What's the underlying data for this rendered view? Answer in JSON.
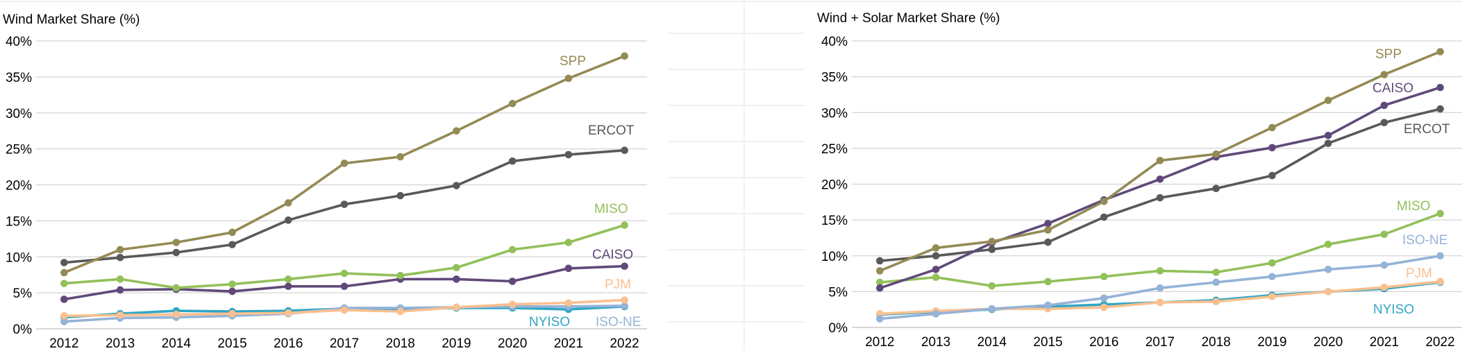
{
  "colors": {
    "SPP": "#948a54",
    "ERCOT": "#595959",
    "MISO": "#92c05a",
    "CAISO": "#60497a",
    "PJM": "#fac090",
    "NYISO": "#31a6c4",
    "ISO-NE": "#95b3d7"
  },
  "chart_data": [
    {
      "type": "line",
      "title": "Wind Market Share (%)",
      "x": [
        "2012",
        "2013",
        "2014",
        "2015",
        "2016",
        "2017",
        "2018",
        "2019",
        "2020",
        "2021",
        "2022"
      ],
      "ylim": [
        0,
        40
      ],
      "yticks": [
        "0%",
        "5%",
        "10%",
        "15%",
        "20%",
        "25%",
        "30%",
        "35%",
        "40%"
      ],
      "grid": true,
      "legend": "inline labels at line ends",
      "series": [
        {
          "name": "SPP",
          "values": [
            7.8,
            11.0,
            12.0,
            13.4,
            17.5,
            23.0,
            23.9,
            27.5,
            31.3,
            34.8,
            37.9
          ]
        },
        {
          "name": "ERCOT",
          "values": [
            9.2,
            9.9,
            10.6,
            11.7,
            15.1,
            17.3,
            18.5,
            19.9,
            23.3,
            24.2,
            24.8
          ]
        },
        {
          "name": "MISO",
          "values": [
            6.3,
            6.9,
            5.7,
            6.2,
            6.9,
            7.7,
            7.4,
            8.5,
            11.0,
            12.0,
            14.4
          ]
        },
        {
          "name": "CAISO",
          "values": [
            4.1,
            5.4,
            5.5,
            5.2,
            5.9,
            5.9,
            6.9,
            6.9,
            6.6,
            8.4,
            8.7
          ]
        },
        {
          "name": "PJM",
          "values": [
            1.8,
            1.9,
            2.0,
            2.1,
            2.2,
            2.6,
            2.4,
            3.0,
            3.4,
            3.6,
            4.0
          ]
        },
        {
          "name": "ISO-NE",
          "values": [
            1.0,
            1.5,
            1.6,
            1.8,
            2.1,
            2.9,
            2.9,
            3.0,
            3.1,
            3.1,
            3.2
          ]
        },
        {
          "name": "NYISO",
          "values": [
            1.6,
            2.1,
            2.5,
            2.4,
            2.5,
            2.8,
            2.7,
            2.9,
            2.9,
            2.7,
            3.1
          ]
        }
      ],
      "labels": {
        "SPP": "SPP",
        "ERCOT": "ERCOT",
        "MISO": "MISO",
        "CAISO": "CAISO",
        "PJM": "PJM",
        "NYISO": "NYISO",
        "ISO-NE": "ISO-NE"
      }
    },
    {
      "type": "line",
      "title": "Wind + Solar Market Share (%)",
      "x": [
        "2012",
        "2013",
        "2014",
        "2015",
        "2016",
        "2017",
        "2018",
        "2019",
        "2020",
        "2021",
        "2022"
      ],
      "ylim": [
        0,
        40
      ],
      "yticks": [
        "0%",
        "5%",
        "10%",
        "15%",
        "20%",
        "25%",
        "30%",
        "35%",
        "40%"
      ],
      "grid": true,
      "legend": "inline labels at line ends",
      "series": [
        {
          "name": "SPP",
          "values": [
            7.9,
            11.1,
            12.0,
            13.6,
            17.6,
            23.3,
            24.2,
            27.9,
            31.7,
            35.3,
            38.5
          ]
        },
        {
          "name": "CAISO",
          "values": [
            5.5,
            8.1,
            11.8,
            14.5,
            17.8,
            20.7,
            23.8,
            25.1,
            26.8,
            31.0,
            33.5
          ]
        },
        {
          "name": "ERCOT",
          "values": [
            9.3,
            10.0,
            10.9,
            11.9,
            15.4,
            18.1,
            19.4,
            21.2,
            25.7,
            28.6,
            30.5
          ]
        },
        {
          "name": "MISO",
          "values": [
            6.3,
            7.0,
            5.8,
            6.4,
            7.1,
            7.9,
            7.7,
            9.0,
            11.6,
            13.0,
            15.9
          ]
        },
        {
          "name": "ISO-NE",
          "values": [
            1.2,
            1.9,
            2.6,
            3.1,
            4.1,
            5.5,
            6.3,
            7.1,
            8.1,
            8.7,
            10.0
          ]
        },
        {
          "name": "PJM",
          "values": [
            1.9,
            2.3,
            2.6,
            2.6,
            2.8,
            3.5,
            3.6,
            4.3,
            5.0,
            5.6,
            6.4
          ]
        },
        {
          "name": "NYISO",
          "values": [
            1.8,
            2.2,
            2.5,
            2.9,
            3.2,
            3.5,
            3.8,
            4.5,
            5.0,
            5.4,
            6.3
          ]
        }
      ],
      "labels": {
        "SPP": "SPP",
        "ERCOT": "ERCOT",
        "MISO": "MISO",
        "CAISO": "CAISO",
        "PJM": "PJM",
        "NYISO": "NYISO",
        "ISO-NE": "ISO-NE"
      }
    }
  ]
}
